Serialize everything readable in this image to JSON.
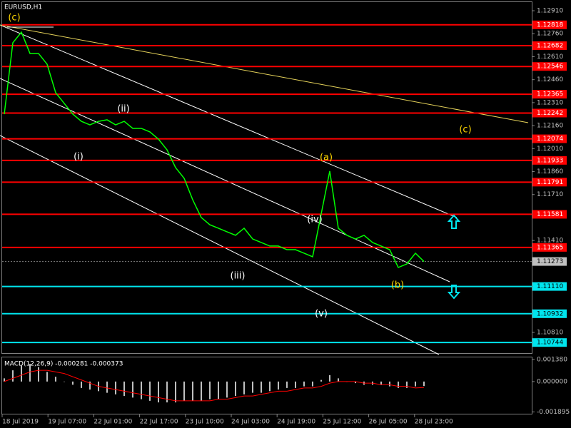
{
  "chart_data": {
    "type": "line",
    "title": "EURUSD,H1",
    "color": "#00ff00",
    "values": [
      1.12235,
      1.12701,
      1.1277,
      1.12631,
      1.12631,
      1.12561,
      1.12375,
      1.12305,
      1.12235,
      1.12188,
      1.12165,
      1.12188,
      1.12198,
      1.12165,
      1.12188,
      1.12142,
      1.12142,
      1.12119,
      1.12072,
      1.12002,
      1.11886,
      1.11816,
      1.11676,
      1.1156,
      1.11513,
      1.1149,
      1.11467,
      1.11444,
      1.1149,
      1.1142,
      1.11397,
      1.11374,
      1.11374,
      1.1135,
      1.1135,
      1.11327,
      1.11304,
      1.11583,
      1.11863,
      1.1149,
      1.11444,
      1.1142,
      1.11444,
      1.11397,
      1.11374,
      1.1135,
      1.11234,
      1.11257,
      1.11327,
      1.11273
    ],
    "ylim": [
      1.10675,
      1.1298
    ],
    "yticks": [
      {
        "value": 1.1291,
        "label": "1.12910"
      },
      {
        "value": 1.1276,
        "label": "1.12760"
      },
      {
        "value": 1.1261,
        "label": "1.12610"
      },
      {
        "value": 1.1246,
        "label": "1.12460"
      },
      {
        "value": 1.1231,
        "label": "1.12310"
      },
      {
        "value": 1.1216,
        "label": "1.12160"
      },
      {
        "value": 1.1201,
        "label": "1.12010"
      },
      {
        "value": 1.1186,
        "label": "1.11860"
      },
      {
        "value": 1.1171,
        "label": "1.11710"
      },
      {
        "value": 1.1141,
        "label": "1.11410"
      },
      {
        "value": 1.1081,
        "label": "1.10810"
      }
    ],
    "last_price": 1.11273,
    "levels": [
      {
        "value": 1.12818,
        "color": "#ff0000"
      },
      {
        "value": 1.12682,
        "color": "#ff0000"
      },
      {
        "value": 1.12546,
        "color": "#ff0000"
      },
      {
        "value": 1.12365,
        "color": "#ff0000"
      },
      {
        "value": 1.12242,
        "color": "#ff0000"
      },
      {
        "value": 1.12074,
        "color": "#ff0000"
      },
      {
        "value": 1.11933,
        "color": "#ff0000"
      },
      {
        "value": 1.11791,
        "color": "#ff0000"
      },
      {
        "value": 1.11581,
        "color": "#ff0000"
      },
      {
        "value": 1.11365,
        "color": "#ff0000"
      },
      {
        "value": {
          "value": 1.1111,
          "label": "1.11110"
        },
        "color": "#00e5ee"
      },
      {
        "value": 1.10932,
        "color": "#00e5ee"
      },
      {
        "value": 1.10744,
        "color": "#00e5ee"
      }
    ],
    "annotations": [
      {
        "text": "(c)",
        "color": "#ffd700"
      },
      {
        "text": "(i)",
        "color": "#ffffff"
      },
      {
        "text": "(ii)",
        "color": "#ffffff"
      },
      {
        "text": "(iii)",
        "color": "#ffffff"
      },
      {
        "text": "(iv)",
        "color": "#ffffff"
      },
      {
        "text": "(v)",
        "color": "#ffffff"
      },
      {
        "text": "(a)",
        "color": "#ffd700"
      },
      {
        "text": "(b)",
        "color": "#ffd700"
      },
      {
        "text": "(c)",
        "color": "#ffd700"
      }
    ],
    "xtick_labels": [
      "18 Jul 2019",
      "19 Jul 07:00",
      "22 Jul 01:00",
      "22 Jul 17:00",
      "23 Jul 10:00",
      "24 Jul 03:00",
      "24 Jul 19:00",
      "25 Jul 12:00",
      "26 Jul 05:00",
      "28 Jul 23:00"
    ],
    "macd": {
      "type": "bar",
      "title": "MACD(12,26,9) -0.000281 -0.000373",
      "color": "#c0c0c0",
      "signal_color": "#ff0000",
      "values": [
        0.0002,
        0.0007,
        0.001,
        0.0011,
        0.0009,
        0.0006,
        0.0003,
        0.0,
        -0.0002,
        -0.0004,
        -0.0005,
        -0.0006,
        -0.0007,
        -0.0008,
        -0.0009,
        -0.001,
        -0.0011,
        -0.0012,
        -0.0013,
        -0.0013,
        -0.0013,
        -0.0012,
        -0.0012,
        -0.0012,
        -0.0011,
        -0.0011,
        -0.001,
        -0.0009,
        -0.0008,
        -0.0007,
        -0.0007,
        -0.0006,
        -0.0005,
        -0.0004,
        -0.0004,
        -0.0003,
        -0.0003,
        0.0001,
        0.0004,
        0.0002,
        0.0,
        -0.0001,
        -0.0002,
        -0.0002,
        -0.0002,
        -0.0003,
        -0.0004,
        -0.0004,
        -0.0003,
        -0.000281
      ],
      "signal": [
        0.0,
        0.0002,
        0.0004,
        0.0006,
        0.0007,
        0.0007,
        0.0006,
        0.0005,
        0.0003,
        0.0001,
        -0.0001,
        -0.0003,
        -0.0004,
        -0.0005,
        -0.0006,
        -0.0007,
        -0.0008,
        -0.0009,
        -0.001,
        -0.0011,
        -0.0012,
        -0.0012,
        -0.0012,
        -0.0012,
        -0.0012,
        -0.0011,
        -0.0011,
        -0.001,
        -0.0009,
        -0.0009,
        -0.0008,
        -0.0007,
        -0.0006,
        -0.0006,
        -0.0005,
        -0.0004,
        -0.0004,
        -0.0003,
        -0.0001,
        0.0,
        0.0,
        0.0,
        -0.0001,
        -0.0001,
        -0.0002,
        -0.0002,
        -0.0003,
        -0.0003,
        -0.0004,
        -0.000373
      ],
      "ylim": [
        -0.00205,
        0.00155
      ],
      "yticks": [
        {
          "value": 0.00138,
          "label": "0.001380"
        },
        {
          "value": 0,
          "label": "0.000000"
        },
        {
          "value": -0.001895,
          "label": "-0.001895"
        }
      ]
    }
  }
}
